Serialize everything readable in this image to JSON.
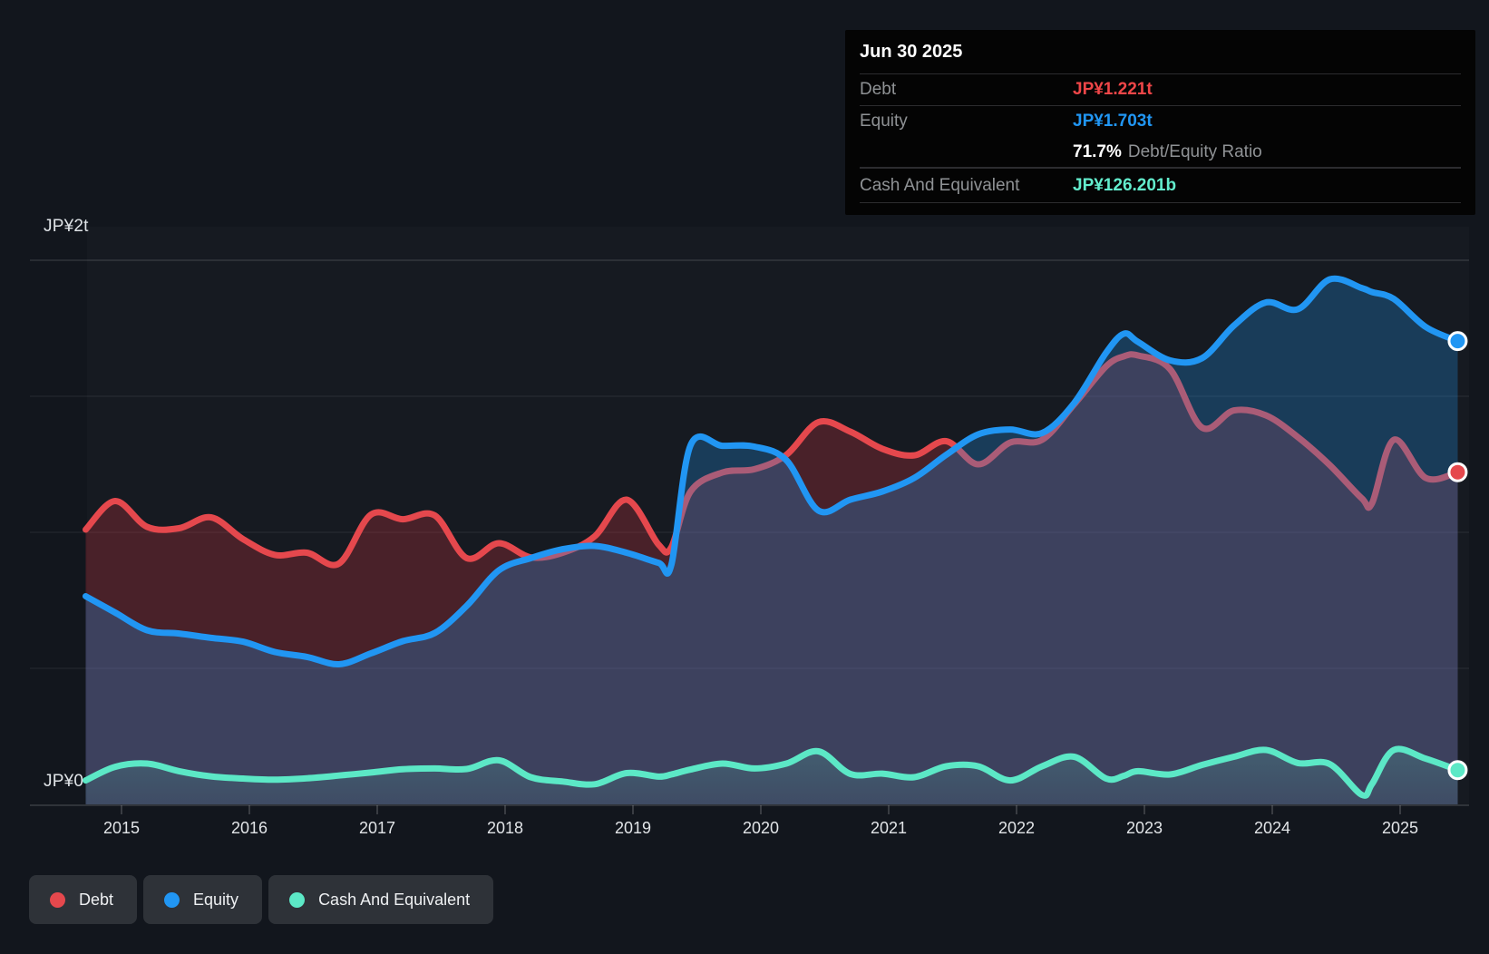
{
  "y_axis": {
    "top_label": "JP¥2t",
    "zero_label": "JP¥0"
  },
  "x_axis": {
    "years": [
      "2015",
      "2016",
      "2017",
      "2018",
      "2019",
      "2020",
      "2021",
      "2022",
      "2023",
      "2024",
      "2025"
    ]
  },
  "tooltip": {
    "date": "Jun 30 2025",
    "debt_label": "Debt",
    "debt_value": "JP¥1.221t",
    "equity_label": "Equity",
    "equity_value": "JP¥1.703t",
    "ratio_pct": "71.7%",
    "ratio_label": "Debt/Equity Ratio",
    "cash_label": "Cash And Equivalent",
    "cash_value": "JP¥126.201b"
  },
  "legend": {
    "items": [
      {
        "label": "Debt",
        "color": "#e5484d"
      },
      {
        "label": "Equity",
        "color": "#2196f3"
      },
      {
        "label": "Cash And Equivalent",
        "color": "#5ce8c6"
      }
    ]
  },
  "chart_data": {
    "type": "area",
    "unit": "JP¥ billions",
    "ylim": [
      0,
      2000
    ],
    "gridline_values_b": [
      500,
      1000,
      1500,
      2000
    ],
    "x_tick_years": [
      2015,
      2016,
      2017,
      2018,
      2019,
      2020,
      2021,
      2022,
      2023,
      2024,
      2025
    ],
    "legend_position": "bottom-left",
    "x": [
      2014.72,
      2014.95,
      2015.2,
      2015.45,
      2015.7,
      2015.95,
      2016.2,
      2016.45,
      2016.7,
      2016.95,
      2017.2,
      2017.45,
      2017.7,
      2017.95,
      2018.2,
      2018.45,
      2018.7,
      2018.95,
      2019.2,
      2019.3,
      2019.45,
      2019.7,
      2019.95,
      2020.2,
      2020.45,
      2020.7,
      2020.95,
      2021.2,
      2021.45,
      2021.7,
      2021.95,
      2022.2,
      2022.45,
      2022.7,
      2022.84,
      2022.95,
      2023.2,
      2023.45,
      2023.7,
      2023.95,
      2024.2,
      2024.45,
      2024.7,
      2024.78,
      2024.95,
      2025.2,
      2025.45
    ],
    "series": [
      {
        "name": "Debt",
        "color": "#e5484d",
        "fill": "rgba(220,55,65,0.26)",
        "end_label": "JP¥1.221t",
        "values": [
          1010,
          1115,
          1020,
          1015,
          1055,
          975,
          917,
          925,
          885,
          1065,
          1048,
          1062,
          905,
          960,
          908,
          925,
          985,
          1120,
          955,
          945,
          1150,
          1220,
          1232,
          1285,
          1405,
          1370,
          1307,
          1283,
          1335,
          1250,
          1330,
          1340,
          1470,
          1610,
          1647,
          1650,
          1600,
          1385,
          1448,
          1430,
          1350,
          1247,
          1125,
          1107,
          1340,
          1200,
          1221
        ]
      },
      {
        "name": "Equity",
        "color": "#2196f3",
        "fill": "rgba(33,140,220,0.30)",
        "end_label": "JP¥1.703t",
        "values": [
          765,
          705,
          640,
          628,
          612,
          598,
          560,
          542,
          515,
          555,
          600,
          630,
          730,
          860,
          905,
          938,
          950,
          925,
          888,
          880,
          1320,
          1318,
          1315,
          1265,
          1080,
          1120,
          1150,
          1200,
          1285,
          1360,
          1378,
          1365,
          1475,
          1660,
          1730,
          1700,
          1632,
          1640,
          1760,
          1845,
          1820,
          1930,
          1898,
          1883,
          1858,
          1755,
          1703
        ]
      },
      {
        "name": "Cash And Equivalent",
        "color": "#5ce8c6",
        "fill": "cash-gradient",
        "end_label": "JP¥126.201b",
        "values": [
          88,
          138,
          150,
          122,
          103,
          95,
          91,
          96,
          106,
          117,
          129,
          132,
          130,
          162,
          100,
          84,
          74,
          115,
          102,
          110,
          128,
          150,
          132,
          150,
          195,
          112,
          113,
          100,
          140,
          140,
          88,
          140,
          175,
          95,
          105,
          122,
          110,
          145,
          175,
          200,
          152,
          148,
          35,
          75,
          200,
          168,
          126
        ]
      }
    ]
  }
}
